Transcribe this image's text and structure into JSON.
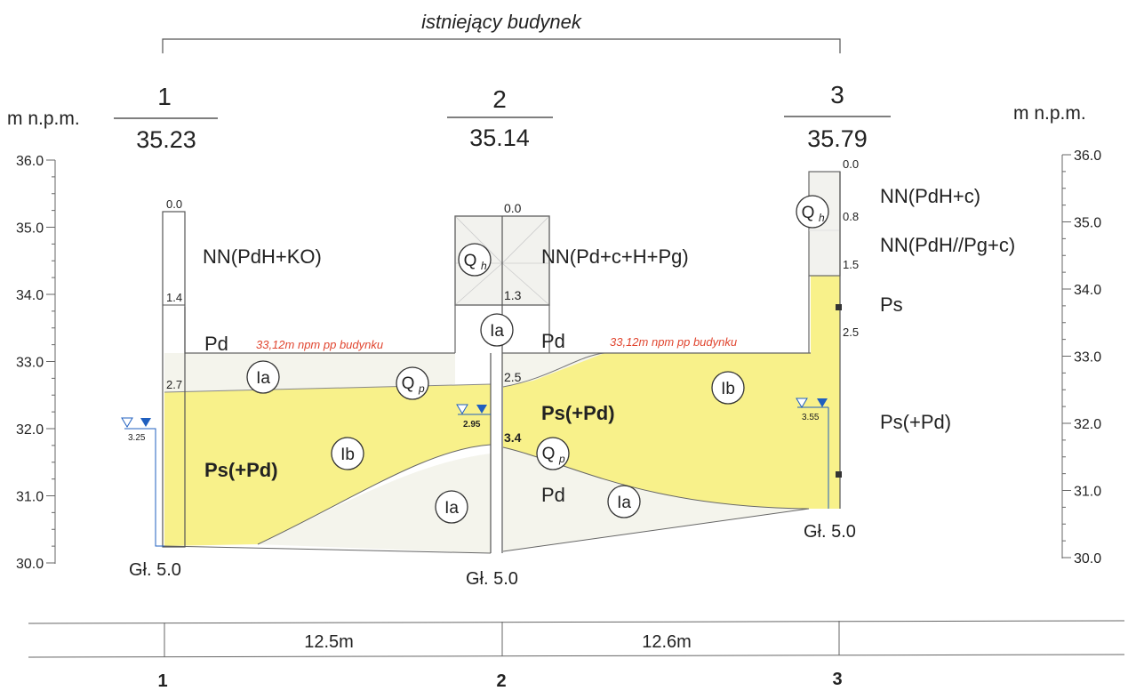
{
  "header": {
    "title": "istniejący budynek"
  },
  "axis": {
    "unit_left": "m n.p.m.",
    "unit_right": "m n.p.m.",
    "left_ticks": [
      "36.0",
      "35.0",
      "34.0",
      "33.0",
      "32.0",
      "31.0",
      "30.0"
    ],
    "right_ticks": [
      "36.0",
      "35.0",
      "34.0",
      "33.0",
      "32.0",
      "31.0",
      "30.0"
    ]
  },
  "boreholes": [
    {
      "number": "1",
      "elevation": "35.23",
      "depth_label": "Gł. 5.0",
      "water_depth": "3.25",
      "layer_depths": [
        "0.0",
        "1.4",
        "2.7"
      ]
    },
    {
      "number": "2",
      "elevation": "35.14",
      "depth_label": "Gł. 5.0",
      "water_depth": "2.95",
      "layer_depths": [
        "0.0",
        "1.3",
        "2.5",
        "3.4"
      ]
    },
    {
      "number": "3",
      "elevation": "35.79",
      "depth_label": "Gł. 5.0",
      "water_depth": "3.55",
      "layer_depths": [
        "0.0",
        "0.8",
        "1.5",
        "2.5"
      ]
    }
  ],
  "soil_labels": {
    "nn1": "NN(PdH+KO)",
    "nn2": "NN(Pd+c+H+Pg)",
    "nn3a": "NN(PdH+c)",
    "nn3b": "NN(PdH//Pg+c)",
    "pd_left": "Pd",
    "pd_mid": "Pd",
    "pd_bottom": "Pd",
    "ps_left": "Ps(+Pd)",
    "ps_mid": "Ps(+Pd)",
    "ps_right_top": "Ps",
    "ps_right": "Ps(+Pd)"
  },
  "foundation_notes": {
    "left": "33,12m npm pp budynku",
    "right": "33,12m npm pp budynku"
  },
  "layer_markers": {
    "ia": "Ia",
    "ib": "Ib",
    "qh": "Q",
    "qh_sub": "h",
    "qp": "Q",
    "qp_sub": "p"
  },
  "distances": {
    "d12": "12.5m",
    "d23": "12.6m"
  },
  "bottom_numbers": [
    "1",
    "2",
    "3"
  ],
  "colors": {
    "sand": "#f8f18a",
    "light": "#f4f4ec",
    "water": "#1f5fbf",
    "note": "#e0442e"
  }
}
